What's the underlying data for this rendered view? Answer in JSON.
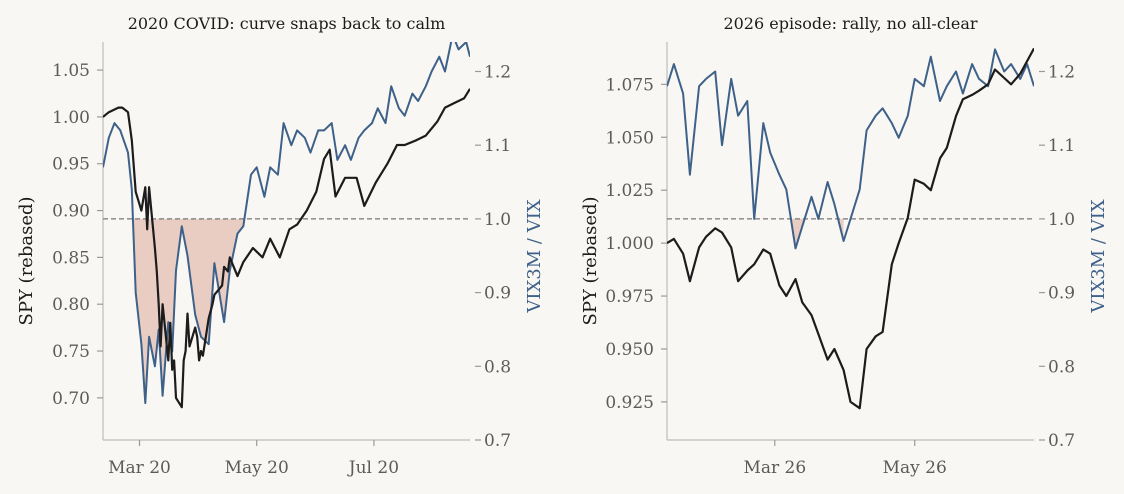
{
  "colors": {
    "background": "#f9f7f3",
    "spy": "#1c1c1c",
    "ratio": "#3e6189",
    "shade": "#e7c6b8",
    "refline": "#777777",
    "spine": "#bdbdbd"
  },
  "chart_data": [
    {
      "type": "line",
      "title": "2020 COVID: curve snaps back to calm",
      "ylabel": "SPY (rebased)",
      "y2label": "VIX3M / VIX",
      "x_ticks": [
        "Mar 20",
        "May 20",
        "Jul 20"
      ],
      "y_ticks": [
        "0.70",
        "0.75",
        "0.80",
        "0.85",
        "0.90",
        "0.95",
        "1.00",
        "1.05"
      ],
      "y2_ticks": [
        "0.7",
        "0.8",
        "0.9",
        "1.0",
        "1.1",
        "1.2"
      ],
      "y_range": [
        0.655,
        1.08
      ],
      "y2_range": [
        0.7,
        1.24
      ],
      "x_range": [
        "2020-02-11",
        "2020-08-20"
      ],
      "reference_line_y2": 1.0,
      "shade_below_reference": true,
      "grid": false,
      "series": [
        {
          "axis": "y",
          "x": [
            "2020-02-11",
            "2020-02-14",
            "2020-02-19",
            "2020-02-21",
            "2020-02-24",
            "2020-02-26",
            "2020-02-28",
            "2020-03-02",
            "2020-03-04",
            "2020-03-05",
            "2020-03-06",
            "2020-03-09",
            "2020-03-10",
            "2020-03-11",
            "2020-03-12",
            "2020-03-13",
            "2020-03-16",
            "2020-03-17",
            "2020-03-18",
            "2020-03-19",
            "2020-03-20",
            "2020-03-23",
            "2020-03-24",
            "2020-03-25",
            "2020-03-26",
            "2020-03-27",
            "2020-03-30",
            "2020-03-31",
            "2020-04-01",
            "2020-04-02",
            "2020-04-03",
            "2020-04-06",
            "2020-04-08",
            "2020-04-09",
            "2020-04-13",
            "2020-04-14",
            "2020-04-16",
            "2020-04-17",
            "2020-04-21",
            "2020-04-24",
            "2020-04-29",
            "2020-05-04",
            "2020-05-08",
            "2020-05-13",
            "2020-05-18",
            "2020-05-22",
            "2020-05-27",
            "2020-06-01",
            "2020-06-05",
            "2020-06-08",
            "2020-06-11",
            "2020-06-16",
            "2020-06-22",
            "2020-06-26",
            "2020-07-02",
            "2020-07-08",
            "2020-07-13",
            "2020-07-17",
            "2020-07-23",
            "2020-07-28",
            "2020-08-03",
            "2020-08-07",
            "2020-08-12",
            "2020-08-17",
            "2020-08-20"
          ],
          "values": [
            1.0,
            1.005,
            1.01,
            1.01,
            1.005,
            0.975,
            0.92,
            0.9,
            0.925,
            0.88,
            0.925,
            0.86,
            0.835,
            0.8,
            0.755,
            0.8,
            0.74,
            0.78,
            0.73,
            0.74,
            0.7,
            0.69,
            0.74,
            0.75,
            0.79,
            0.755,
            0.775,
            0.765,
            0.74,
            0.75,
            0.745,
            0.785,
            0.8,
            0.81,
            0.82,
            0.84,
            0.835,
            0.85,
            0.83,
            0.845,
            0.86,
            0.85,
            0.87,
            0.85,
            0.88,
            0.885,
            0.9,
            0.92,
            0.955,
            0.965,
            0.915,
            0.935,
            0.935,
            0.905,
            0.93,
            0.95,
            0.97,
            0.97,
            0.975,
            0.98,
            0.995,
            1.01,
            1.015,
            1.02,
            1.03
          ]
        },
        {
          "axis": "y2",
          "x": [
            "2020-02-11",
            "2020-02-14",
            "2020-02-17",
            "2020-02-20",
            "2020-02-24",
            "2020-02-26",
            "2020-02-28",
            "2020-03-02",
            "2020-03-04",
            "2020-03-06",
            "2020-03-09",
            "2020-03-11",
            "2020-03-13",
            "2020-03-16",
            "2020-03-18",
            "2020-03-20",
            "2020-03-23",
            "2020-03-26",
            "2020-03-30",
            "2020-04-02",
            "2020-04-06",
            "2020-04-09",
            "2020-04-14",
            "2020-04-17",
            "2020-04-21",
            "2020-04-24",
            "2020-04-28",
            "2020-05-01",
            "2020-05-05",
            "2020-05-08",
            "2020-05-12",
            "2020-05-15",
            "2020-05-19",
            "2020-05-22",
            "2020-05-26",
            "2020-05-29",
            "2020-06-02",
            "2020-06-05",
            "2020-06-09",
            "2020-06-12",
            "2020-06-16",
            "2020-06-19",
            "2020-06-23",
            "2020-06-26",
            "2020-06-30",
            "2020-07-03",
            "2020-07-07",
            "2020-07-10",
            "2020-07-14",
            "2020-07-17",
            "2020-07-21",
            "2020-07-24",
            "2020-07-28",
            "2020-07-31",
            "2020-08-04",
            "2020-08-07",
            "2020-08-11",
            "2020-08-14",
            "2020-08-18",
            "2020-08-20"
          ],
          "values": [
            1.07,
            1.11,
            1.13,
            1.12,
            1.09,
            1.04,
            0.9,
            0.83,
            0.75,
            0.84,
            0.8,
            0.85,
            0.76,
            0.86,
            0.82,
            0.93,
            0.99,
            0.95,
            0.87,
            0.84,
            0.83,
            0.94,
            0.86,
            0.93,
            0.98,
            0.99,
            1.06,
            1.07,
            1.03,
            1.07,
            1.06,
            1.13,
            1.1,
            1.12,
            1.11,
            1.09,
            1.12,
            1.12,
            1.13,
            1.08,
            1.1,
            1.08,
            1.11,
            1.12,
            1.13,
            1.15,
            1.13,
            1.18,
            1.15,
            1.14,
            1.17,
            1.16,
            1.18,
            1.2,
            1.22,
            1.2,
            1.25,
            1.23,
            1.24,
            1.22
          ]
        }
      ]
    },
    {
      "type": "line",
      "title": "2026 episode: rally, no all-clear",
      "ylabel": "SPY (rebased)",
      "y2label": "VIX3M / VIX",
      "x_ticks": [
        "Mar 26",
        "May 26"
      ],
      "y_ticks": [
        "0.925",
        "0.950",
        "0.975",
        "1.000",
        "1.025",
        "1.050",
        "1.075"
      ],
      "y2_ticks": [
        "0.7",
        "0.8",
        "0.9",
        "1.0",
        "1.1",
        "1.2"
      ],
      "y_range": [
        0.907,
        1.095
      ],
      "y2_range": [
        0.7,
        1.24
      ],
      "x_range": [
        "2026-01-13",
        "2026-06-22"
      ],
      "reference_line_y2": 1.0,
      "shade_below_reference": true,
      "grid": false,
      "series": [
        {
          "axis": "y",
          "x": [
            "2026-01-13",
            "2026-01-16",
            "2026-01-20",
            "2026-01-23",
            "2026-01-27",
            "2026-01-30",
            "2026-02-03",
            "2026-02-06",
            "2026-02-10",
            "2026-02-13",
            "2026-02-17",
            "2026-02-20",
            "2026-02-24",
            "2026-02-27",
            "2026-03-03",
            "2026-03-06",
            "2026-03-10",
            "2026-03-13",
            "2026-03-17",
            "2026-03-20",
            "2026-03-24",
            "2026-03-27",
            "2026-03-31",
            "2026-04-03",
            "2026-04-07",
            "2026-04-10",
            "2026-04-14",
            "2026-04-17",
            "2026-04-21",
            "2026-04-24",
            "2026-04-28",
            "2026-05-01",
            "2026-05-05",
            "2026-05-08",
            "2026-05-12",
            "2026-05-15",
            "2026-05-19",
            "2026-05-22",
            "2026-05-26",
            "2026-05-29",
            "2026-06-02",
            "2026-06-05",
            "2026-06-09",
            "2026-06-12",
            "2026-06-16",
            "2026-06-19",
            "2026-06-22"
          ],
          "values": [
            1.0,
            1.002,
            0.995,
            0.982,
            0.998,
            1.003,
            1.007,
            1.005,
            0.998,
            0.982,
            0.987,
            0.99,
            0.997,
            0.995,
            0.98,
            0.975,
            0.983,
            0.972,
            0.966,
            0.957,
            0.945,
            0.95,
            0.94,
            0.925,
            0.922,
            0.95,
            0.956,
            0.958,
            0.99,
            1.0,
            1.012,
            1.03,
            1.028,
            1.025,
            1.04,
            1.045,
            1.06,
            1.068,
            1.07,
            1.072,
            1.075,
            1.082,
            1.078,
            1.075,
            1.08,
            1.086,
            1.092
          ]
        },
        {
          "axis": "y2",
          "x": [
            "2026-01-13",
            "2026-01-16",
            "2026-01-20",
            "2026-01-23",
            "2026-01-27",
            "2026-01-30",
            "2026-02-03",
            "2026-02-06",
            "2026-02-10",
            "2026-02-13",
            "2026-02-17",
            "2026-02-20",
            "2026-02-24",
            "2026-02-27",
            "2026-03-03",
            "2026-03-06",
            "2026-03-10",
            "2026-03-13",
            "2026-03-17",
            "2026-03-20",
            "2026-03-24",
            "2026-03-27",
            "2026-03-31",
            "2026-04-03",
            "2026-04-07",
            "2026-04-10",
            "2026-04-14",
            "2026-04-17",
            "2026-04-21",
            "2026-04-24",
            "2026-04-28",
            "2026-05-01",
            "2026-05-05",
            "2026-05-08",
            "2026-05-12",
            "2026-05-15",
            "2026-05-19",
            "2026-05-22",
            "2026-05-26",
            "2026-05-29",
            "2026-06-02",
            "2026-06-05",
            "2026-06-09",
            "2026-06-12",
            "2026-06-16",
            "2026-06-19",
            "2026-06-22"
          ],
          "values": [
            1.18,
            1.21,
            1.17,
            1.06,
            1.18,
            1.19,
            1.2,
            1.1,
            1.19,
            1.14,
            1.16,
            1.0,
            1.13,
            1.09,
            1.06,
            1.04,
            0.96,
            0.99,
            1.03,
            1.0,
            1.05,
            1.02,
            0.97,
            1.0,
            1.04,
            1.12,
            1.14,
            1.15,
            1.13,
            1.11,
            1.14,
            1.19,
            1.18,
            1.22,
            1.16,
            1.18,
            1.2,
            1.17,
            1.21,
            1.19,
            1.18,
            1.23,
            1.2,
            1.21,
            1.19,
            1.21,
            1.18
          ]
        }
      ]
    }
  ]
}
